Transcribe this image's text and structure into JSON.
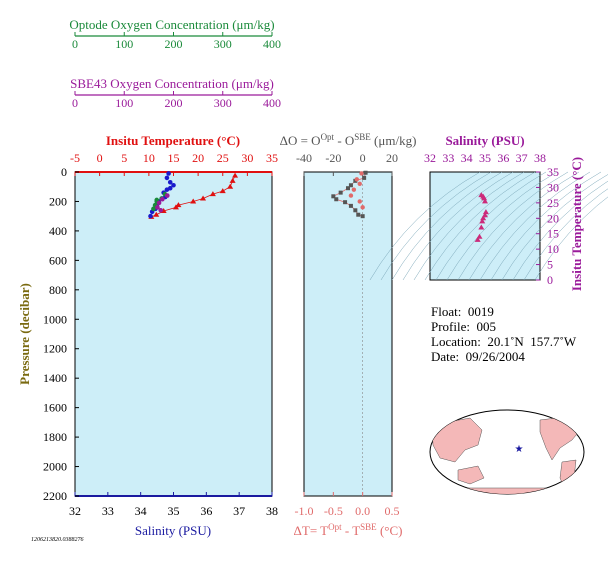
{
  "colors": {
    "optode": "#1a8a3a",
    "sbe": "#9a1a9a",
    "temp": "#e01010",
    "salinity_axis": "#1a1aa0",
    "pressure": "#7a6a10",
    "delta": "#e06a6a",
    "panel_bg": "#cdeef8",
    "deltaO_label": "#555555"
  },
  "optode_axis": {
    "label": "Optode Oxygen Concentration (μm/kg)",
    "ticks": [
      "0",
      "100",
      "200",
      "300",
      "400"
    ]
  },
  "sbe_axis": {
    "label": "SBE43 Oxygen Concentration (μm/kg)",
    "ticks": [
      "0",
      "100",
      "200",
      "300",
      "400"
    ]
  },
  "info": {
    "float": "Float:  0019",
    "profile": "Profile:  005",
    "location": "Location:  20.1˚N  157.7˚W",
    "date": "Date:  09/26/2004"
  },
  "footer_code": "1206213820.0388276",
  "chart_data": [
    {
      "type": "scatter",
      "name": "profile",
      "title": "Insitu Temperature (°C)",
      "xlabel": "Salinity (PSU)",
      "ylabel": "Pressure (decibar)",
      "temp_ticks": [
        "-5",
        "0",
        "5",
        "10",
        "15",
        "20",
        "25",
        "30",
        "35"
      ],
      "sal_ticks": [
        "32",
        "33",
        "34",
        "35",
        "36",
        "37",
        "38"
      ],
      "pressure_ticks": [
        "0",
        "200",
        "400",
        "600",
        "800",
        "1000",
        "1200",
        "1400",
        "1600",
        "1800",
        "2000",
        "2200"
      ],
      "temp_range": [
        -5,
        35
      ],
      "sal_range": [
        32,
        38
      ],
      "pressure_range": [
        0,
        2200
      ],
      "temperature": [
        [
          27.5,
          25
        ],
        [
          27,
          60
        ],
        [
          26.5,
          100
        ],
        [
          25,
          130
        ],
        [
          23,
          150
        ],
        [
          21,
          180
        ],
        [
          19,
          200
        ],
        [
          16,
          225
        ],
        [
          15.5,
          240
        ],
        [
          13,
          265
        ],
        [
          11.5,
          290
        ],
        [
          10.5,
          305
        ]
      ],
      "salinity": [
        [
          34.85,
          10
        ],
        [
          34.8,
          40
        ],
        [
          34.9,
          70
        ],
        [
          35.0,
          90
        ],
        [
          34.9,
          110
        ],
        [
          34.8,
          120
        ],
        [
          34.7,
          140
        ],
        [
          34.75,
          170
        ],
        [
          34.65,
          180
        ],
        [
          34.55,
          200
        ],
        [
          34.5,
          220
        ],
        [
          34.45,
          250
        ],
        [
          34.35,
          270
        ],
        [
          34.3,
          300
        ]
      ],
      "optode": [
        [
          34.8,
          150
        ],
        [
          34.7,
          180
        ],
        [
          34.55,
          200
        ],
        [
          34.5,
          225
        ],
        [
          34.45,
          250
        ],
        [
          34.55,
          190
        ]
      ],
      "sbe": [
        [
          34.75,
          160
        ],
        [
          34.6,
          185
        ],
        [
          34.5,
          210
        ],
        [
          34.45,
          240
        ],
        [
          34.55,
          260
        ]
      ]
    },
    {
      "type": "scatter",
      "name": "difference",
      "title": "ΔO = O^Opt - O^SBE (μm/kg)",
      "title_parts": [
        "ΔO = O",
        "Opt",
        " - O",
        "SBE",
        " (μm/kg)"
      ],
      "xlabel": "ΔT= T^Opt - T^SBE (°C)",
      "xlabel_parts": [
        "ΔT= T",
        "Opt",
        " - T",
        "SBE",
        " (°C)"
      ],
      "o_ticks": [
        "-40",
        "-20",
        "0",
        "20"
      ],
      "t_ticks": [
        "-1.0",
        "-0.5",
        "0.0",
        "0.5"
      ],
      "o_range": [
        -40,
        20
      ],
      "t_range": [
        -1.0,
        0.5
      ],
      "pressure_range": [
        0,
        2200
      ],
      "delta_o": [
        [
          2,
          5
        ],
        [
          1,
          40
        ],
        [
          -5,
          60
        ],
        [
          -8,
          90
        ],
        [
          -10,
          110
        ],
        [
          -15,
          140
        ],
        [
          -20,
          165
        ],
        [
          -18,
          185
        ],
        [
          -12,
          205
        ],
        [
          -8,
          230
        ],
        [
          -5,
          260
        ],
        [
          -3,
          290
        ],
        [
          0,
          300
        ]
      ],
      "delta_t": [
        [
          -0.02,
          10
        ],
        [
          -0.1,
          50
        ],
        [
          -0.05,
          80
        ],
        [
          -0.15,
          120
        ],
        [
          -0.2,
          160
        ],
        [
          -0.05,
          200
        ],
        [
          0.0,
          240
        ]
      ]
    },
    {
      "type": "scatter",
      "name": "ts_diagram",
      "title": "Salinity (PSU)",
      "ylabel": "Insitu Temperature (°C)",
      "sal_ticks": [
        "32",
        "33",
        "34",
        "35",
        "36",
        "37",
        "38"
      ],
      "temp_ticks": [
        "0",
        "5",
        "10",
        "15",
        "20",
        "25",
        "30",
        "35"
      ],
      "sal_range": [
        32,
        38
      ],
      "temp_range": [
        0,
        35
      ],
      "points": [
        [
          34.8,
          27.5
        ],
        [
          34.9,
          27
        ],
        [
          34.95,
          26.5
        ],
        [
          35.0,
          25.5
        ],
        [
          35.05,
          22
        ],
        [
          35.0,
          21
        ],
        [
          34.9,
          20
        ],
        [
          34.85,
          19
        ],
        [
          34.8,
          17
        ],
        [
          34.7,
          14
        ],
        [
          34.6,
          13
        ]
      ]
    }
  ]
}
